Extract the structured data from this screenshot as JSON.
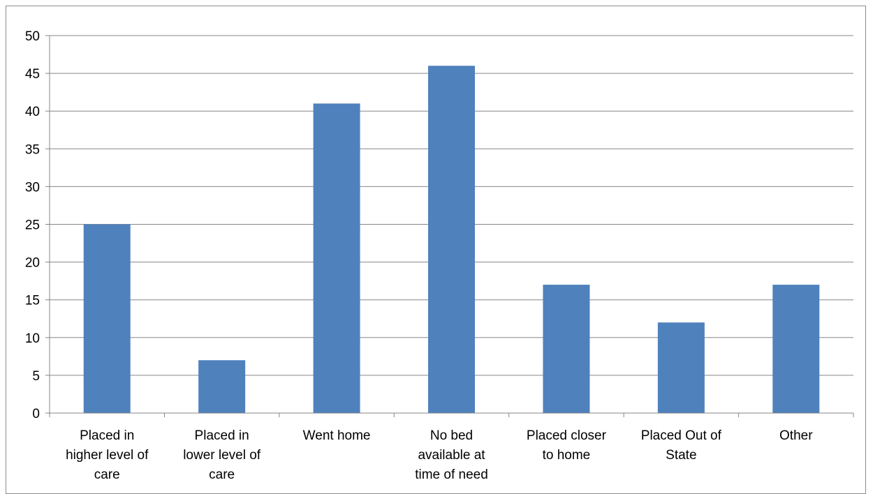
{
  "chart_data": {
    "type": "bar",
    "categories": [
      [
        "Placed in",
        "higher level of",
        "care"
      ],
      [
        "Placed in",
        "lower level of",
        "care"
      ],
      [
        "Went home"
      ],
      [
        "No bed",
        "available at",
        "time of need"
      ],
      [
        "Placed closer",
        "to home"
      ],
      [
        "Placed Out of",
        "State"
      ],
      [
        "Other"
      ]
    ],
    "values": [
      25,
      7,
      41,
      46,
      17,
      12,
      17
    ],
    "ylim": [
      0,
      50
    ],
    "yticks": [
      0,
      5,
      10,
      15,
      20,
      25,
      30,
      35,
      40,
      45,
      50
    ],
    "grid": true,
    "bar_color": "#4f81bd"
  }
}
